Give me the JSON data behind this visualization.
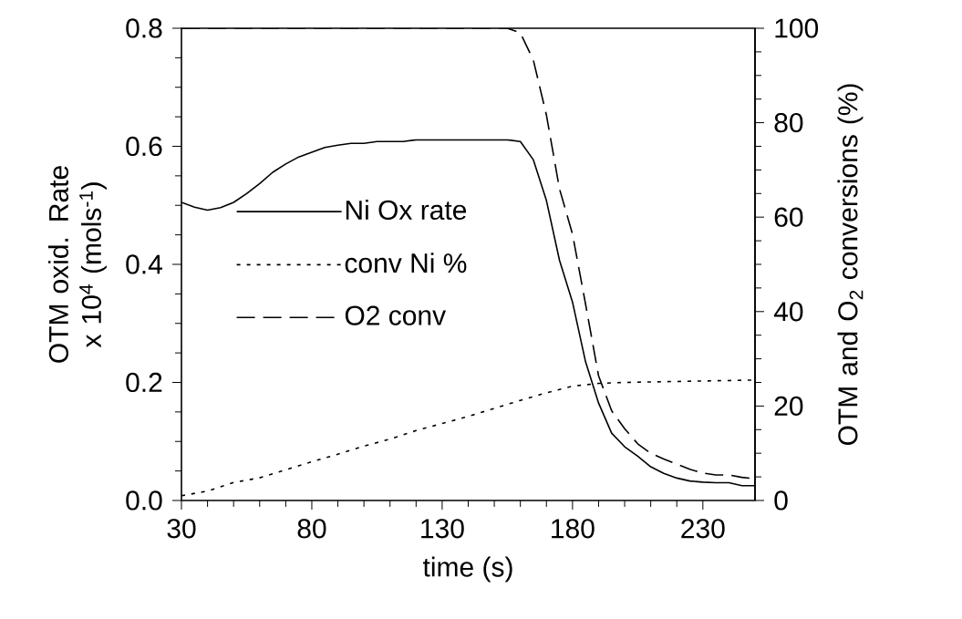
{
  "chart_data": {
    "type": "line",
    "xlabel": "time (s)",
    "ylabel": "OTM oxid. Rate x 10$^{4}$ (mols$^{-1}$)",
    "y2label": "OTM and O$_{2}$ conversions (%)",
    "xlim": [
      30,
      250
    ],
    "xticks": [
      30,
      80,
      130,
      180,
      230
    ],
    "ylim": [
      0,
      0.8
    ],
    "yticks": [
      {
        "value": 0,
        "label": "0.0"
      },
      0.2,
      0.4,
      0.6,
      0.8
    ],
    "y2lim": [
      0,
      100
    ],
    "y2ticks": [
      0,
      20,
      40,
      60,
      80,
      100
    ],
    "legend": "left",
    "grid": false,
    "series": [
      {
        "name": "Ni Ox rate",
        "color": "#000000",
        "line_style": "solid",
        "x": [
          30,
          35,
          40,
          45,
          50,
          55,
          60,
          65,
          70,
          75,
          80,
          85,
          90,
          95,
          100,
          105,
          110,
          115,
          120,
          155,
          160,
          165,
          170,
          175,
          180,
          185,
          190,
          195,
          200,
          205,
          210,
          215,
          220,
          225,
          230,
          235,
          240,
          245,
          250
        ],
        "values": [
          0.505,
          0.497,
          0.492,
          0.496,
          0.505,
          0.52,
          0.537,
          0.556,
          0.57,
          0.582,
          0.59,
          0.598,
          0.602,
          0.605,
          0.605,
          0.608,
          0.608,
          0.608,
          0.611,
          0.611,
          0.608,
          0.577,
          0.508,
          0.407,
          0.336,
          0.235,
          0.165,
          0.114,
          0.091,
          0.075,
          0.057,
          0.046,
          0.038,
          0.033,
          0.031,
          0.03,
          0.03,
          0.025,
          0.025
        ]
      },
      {
        "name": "conv Ni %",
        "color": "#000000",
        "line_style": "dotted",
        "axis": "y2",
        "x": [
          30,
          40,
          50,
          60,
          70,
          80,
          90,
          100,
          110,
          120,
          130,
          140,
          150,
          160,
          170,
          180,
          190,
          200,
          220,
          250
        ],
        "values": [
          1.0,
          2.0,
          3.8,
          4.8,
          6.5,
          8.2,
          9.8,
          11.5,
          13.0,
          14.8,
          16.3,
          17.8,
          19.5,
          21.2,
          22.8,
          24.2,
          24.8,
          25.0,
          25.2,
          25.5
        ]
      },
      {
        "name": "O2 conv",
        "color": "#000000",
        "line_style": "dashed",
        "axis": "y2",
        "x": [
          30,
          155,
          160,
          165,
          170,
          175,
          180,
          185,
          190,
          195,
          200,
          205,
          210,
          215,
          220,
          225,
          230,
          235,
          240,
          245,
          250
        ],
        "values": [
          100,
          100,
          99,
          93.2,
          81.6,
          66,
          56.4,
          41.6,
          26.4,
          19,
          15.2,
          12,
          10,
          8.8,
          7.7,
          6.6,
          5.8,
          5.4,
          5.4,
          4.9,
          4.6
        ]
      }
    ]
  }
}
